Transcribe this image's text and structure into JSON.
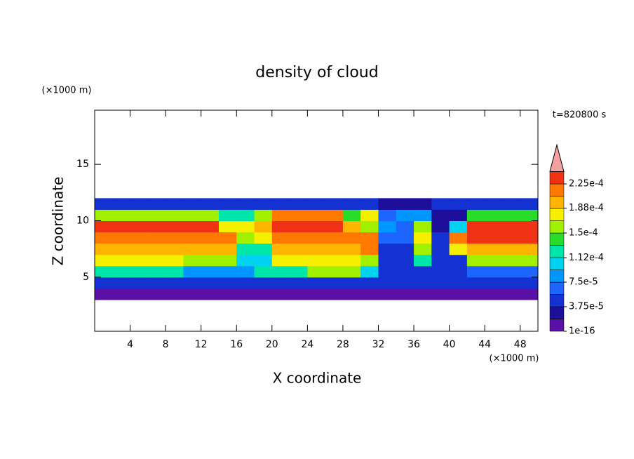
{
  "chart_data": {
    "type": "contour",
    "title": "density of cloud",
    "x_label": "X coordinate",
    "y_label": "Z coordinate",
    "x_unit": "(×1000 m)",
    "y_unit": "(×1000 m)",
    "annotation": "t=820800 s",
    "xlim": [
      0,
      50
    ],
    "xticks": [
      4,
      8,
      12,
      16,
      20,
      24,
      28,
      32,
      36,
      40,
      44,
      48
    ],
    "ylim": [
      0.2,
      19.8
    ],
    "yticks": [
      5,
      10,
      15
    ],
    "cell_width": 2,
    "cell_height": 1,
    "x": [
      1,
      3,
      5,
      7,
      9,
      11,
      13,
      15,
      17,
      19,
      21,
      23,
      25,
      27,
      29,
      31,
      33,
      35,
      37,
      39,
      41,
      43,
      45,
      47,
      49
    ],
    "y": [
      3.5,
      4.5,
      5.5,
      6.5,
      7.5,
      8.5,
      9.5,
      10.5,
      11.5
    ],
    "z": [
      [
        1e-05,
        1e-05,
        1e-05,
        1e-05,
        1e-05,
        1e-05,
        1e-05,
        1e-05,
        1e-05,
        1e-05,
        1e-05,
        1e-05,
        1e-05,
        1e-05,
        1e-05,
        1e-05,
        1e-05,
        1e-05,
        1e-05,
        1e-05,
        1e-05,
        1e-05,
        1e-05,
        1e-05,
        1e-05
      ],
      [
        5e-05,
        5e-05,
        5e-05,
        5e-05,
        5e-05,
        5e-05,
        5e-05,
        5e-05,
        5e-05,
        4e-05,
        4e-05,
        5e-05,
        5e-05,
        5e-05,
        5e-05,
        5e-05,
        5e-05,
        5e-05,
        5e-05,
        5e-05,
        5e-05,
        5e-05,
        5e-05,
        5e-05,
        5e-05
      ],
      [
        0.00012,
        0.00012,
        0.00012,
        0.00012,
        0.00012,
        9e-05,
        9e-05,
        9e-05,
        9e-05,
        0.00012,
        0.00012,
        0.00012,
        0.00015,
        0.00015,
        0.00015,
        0.0001,
        5e-05,
        5e-05,
        5e-05,
        5e-05,
        5e-05,
        6e-05,
        6e-05,
        6e-05,
        6e-05
      ],
      [
        0.00017,
        0.00017,
        0.00017,
        0.00017,
        0.00017,
        0.00015,
        0.00015,
        0.00015,
        0.00011,
        0.00011,
        0.00018,
        0.00018,
        0.00018,
        0.00018,
        0.00018,
        0.00015,
        4e-05,
        4e-05,
        0.00013,
        5e-05,
        5e-05,
        0.00016,
        0.00016,
        0.00016,
        0.00016
      ],
      [
        0.0002,
        0.0002,
        0.0002,
        0.0002,
        0.0002,
        0.0002,
        0.0002,
        0.00019,
        0.00012,
        0.00012,
        0.0002,
        0.0002,
        0.0002,
        0.0002,
        0.0002,
        0.00022,
        5e-05,
        5e-05,
        0.00016,
        5e-05,
        0.00018,
        0.0002,
        0.0002,
        0.0002,
        0.0002
      ],
      [
        0.00022,
        0.00022,
        0.00022,
        0.00022,
        0.00022,
        0.00022,
        0.00022,
        0.00022,
        0.00016,
        0.00018,
        0.00022,
        0.00022,
        0.00022,
        0.00022,
        0.00022,
        0.00022,
        6e-05,
        6e-05,
        0.00018,
        4e-05,
        0.00021,
        0.00023,
        0.00023,
        0.00023,
        0.00023
      ],
      [
        0.00023,
        0.00023,
        0.00023,
        0.00023,
        0.00023,
        0.00023,
        0.00023,
        0.00018,
        0.00018,
        0.0002,
        0.00023,
        0.00023,
        0.00023,
        0.00023,
        0.0002,
        0.00015,
        8e-05,
        6e-05,
        0.00015,
        3e-05,
        0.0001,
        0.00023,
        0.00023,
        0.00023,
        0.00023
      ],
      [
        0.00015,
        0.00015,
        0.00015,
        0.00015,
        0.00015,
        0.00015,
        0.00015,
        0.00012,
        0.00012,
        0.00016,
        0.00022,
        0.00022,
        0.00022,
        0.00022,
        0.00014,
        0.00017,
        6e-05,
        9e-05,
        9e-05,
        3e-05,
        3e-05,
        0.00014,
        0.00014,
        0.00014,
        0.00014
      ],
      [
        4e-05,
        4e-05,
        4e-05,
        4e-05,
        4e-05,
        4e-05,
        4e-05,
        4e-05,
        4e-05,
        4e-05,
        4e-05,
        4e-05,
        4e-05,
        4e-05,
        4e-05,
        4e-05,
        3e-05,
        3e-05,
        3e-05,
        4e-05,
        4e-05,
        4e-05,
        4e-05,
        4e-05,
        4e-05
      ]
    ],
    "levels": [
      1e-16,
      1.875e-05,
      3.75e-05,
      5.625e-05,
      7.5e-05,
      9.375e-05,
      0.0001125,
      0.00013125,
      0.00015,
      0.00016875,
      0.0001875,
      0.00020625,
      0.000225,
      0.00024375
    ],
    "level_colors": [
      "#5a0fa5",
      "#1e0f9b",
      "#1432d2",
      "#1e64ff",
      "#0096ff",
      "#00d2f0",
      "#00e6aa",
      "#28dc28",
      "#a0f000",
      "#f5f000",
      "#ffb400",
      "#ff7800",
      "#f03214"
    ],
    "overflow_color": "#f5a0a0",
    "colorbar_ticks": [
      1e-16,
      {
        "value": 3.75e-05,
        "label": "3.75e-5"
      },
      {
        "value": 7.5e-05,
        "label": "7.5e-5"
      },
      {
        "value": 0.000112,
        "label": "1.12e-4"
      },
      {
        "value": 0.00015,
        "label": "1.5e-4"
      },
      {
        "value": 0.000188,
        "label": "1.88e-4"
      },
      {
        "value": 0.000225,
        "label": "2.25e-4"
      }
    ]
  }
}
